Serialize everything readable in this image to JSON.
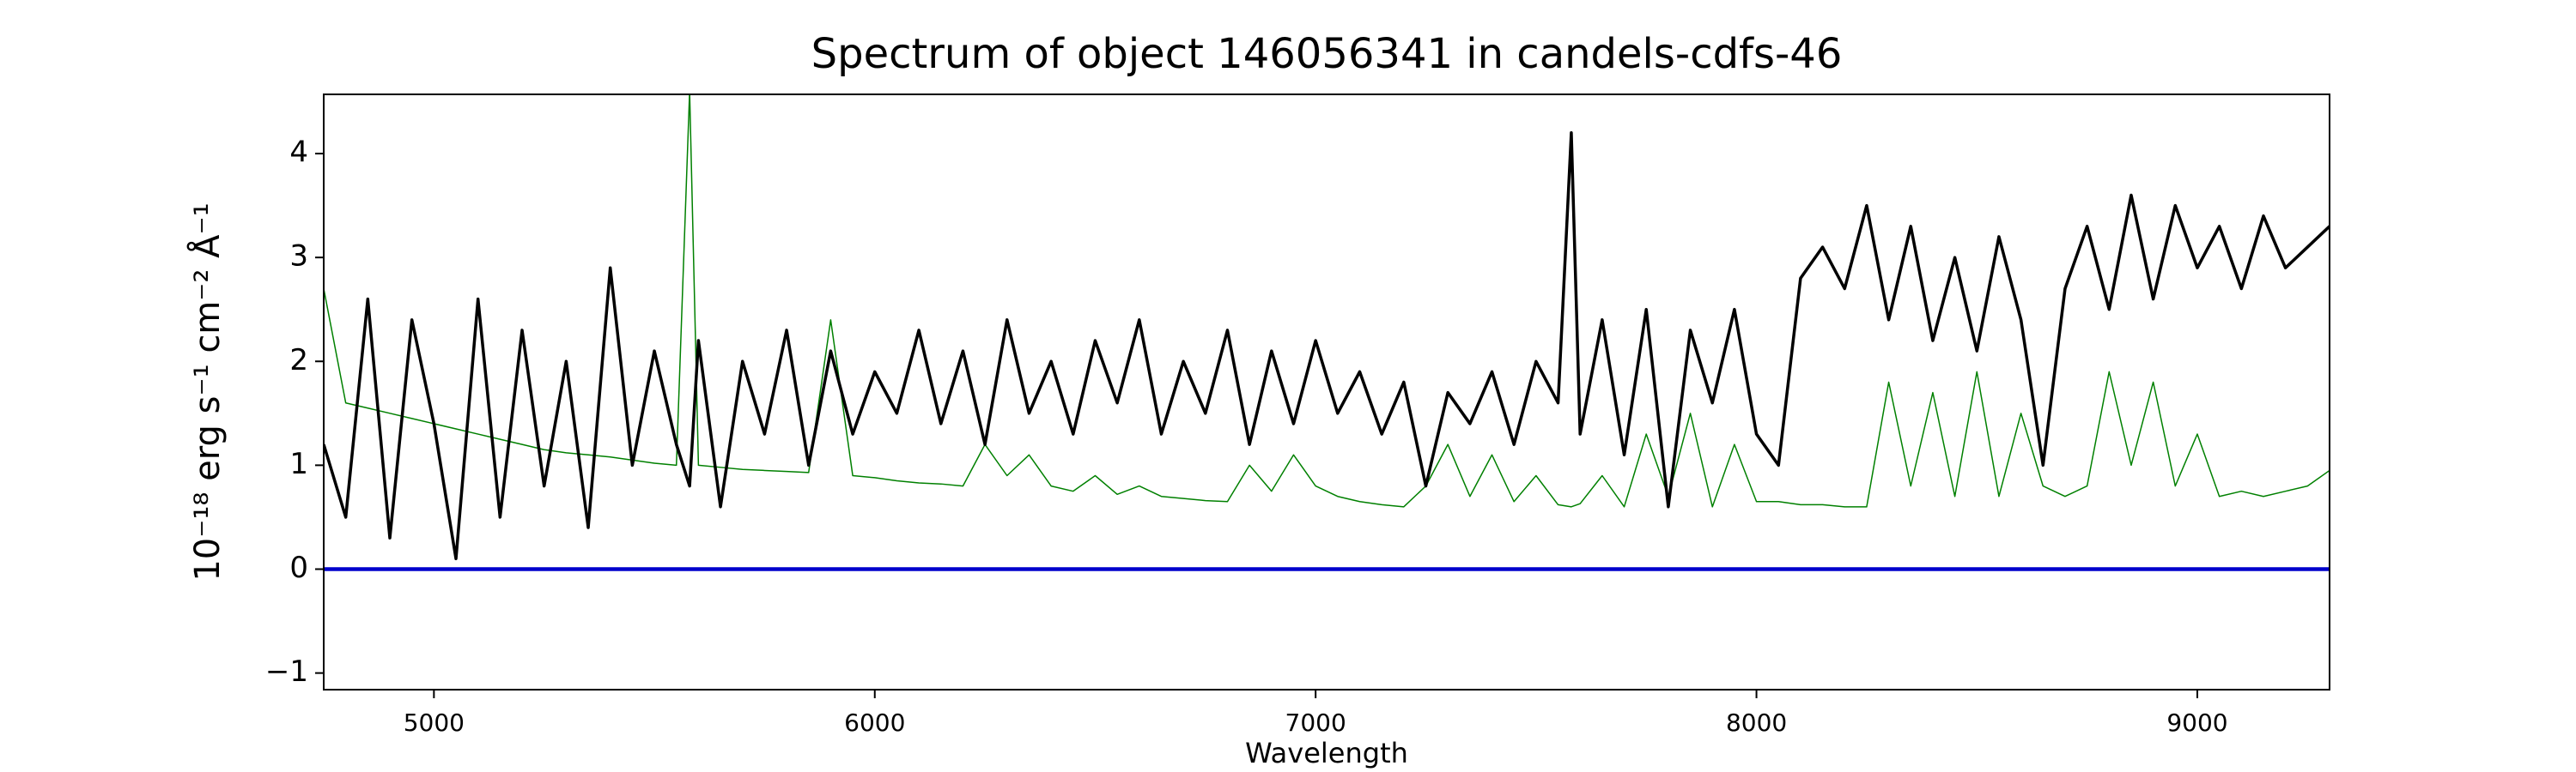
{
  "chart_data": {
    "type": "line",
    "title": "Spectrum of object 146056341 in candels-cdfs-46",
    "x_label": "Wavelength",
    "y_label": "10⁻¹⁸ erg s⁻¹ cm⁻² Å⁻¹",
    "xlim": [
      4750,
      9300
    ],
    "ylim": [
      -1.16,
      4.57
    ],
    "xticks": [
      5000,
      6000,
      7000,
      8000,
      9000
    ],
    "yticks": [
      {
        "value": -1,
        "label": "−1"
      },
      0,
      1,
      2,
      3,
      4
    ],
    "x": [
      4750,
      4800,
      4850,
      4900,
      4950,
      5000,
      5050,
      5100,
      5150,
      5200,
      5250,
      5300,
      5350,
      5400,
      5450,
      5500,
      5550,
      5580,
      5600,
      5650,
      5700,
      5750,
      5800,
      5850,
      5900,
      5950,
      6000,
      6050,
      6100,
      6150,
      6200,
      6250,
      6300,
      6350,
      6400,
      6450,
      6500,
      6550,
      6600,
      6650,
      6700,
      6750,
      6800,
      6850,
      6900,
      6950,
      7000,
      7050,
      7100,
      7150,
      7200,
      7250,
      7300,
      7350,
      7400,
      7450,
      7500,
      7550,
      7580,
      7600,
      7650,
      7700,
      7750,
      7800,
      7850,
      7900,
      7950,
      8000,
      8050,
      8100,
      8150,
      8200,
      8250,
      8300,
      8350,
      8400,
      8450,
      8500,
      8550,
      8600,
      8650,
      8700,
      8750,
      8800,
      8850,
      8900,
      8950,
      9000,
      9050,
      9100,
      9150,
      9200,
      9250,
      9300
    ],
    "series": [
      {
        "color": "#008000",
        "width": 1.5,
        "values": [
          2.7,
          1.6,
          1.55,
          1.5,
          1.45,
          1.4,
          1.35,
          1.3,
          1.25,
          1.2,
          1.15,
          1.12,
          1.1,
          1.08,
          1.05,
          1.02,
          1.0,
          4.6,
          1.0,
          0.98,
          0.96,
          0.95,
          0.94,
          0.93,
          2.4,
          0.9,
          0.88,
          0.85,
          0.83,
          0.82,
          0.8,
          1.2,
          0.9,
          1.1,
          0.8,
          0.75,
          0.9,
          0.72,
          0.8,
          0.7,
          0.68,
          0.66,
          0.65,
          1.0,
          0.75,
          1.1,
          0.8,
          0.7,
          0.65,
          0.62,
          0.6,
          0.8,
          1.2,
          0.7,
          1.1,
          0.65,
          0.9,
          0.62,
          0.6,
          0.63,
          0.9,
          0.6,
          1.3,
          0.7,
          1.5,
          0.6,
          1.2,
          0.65,
          0.65,
          0.62,
          0.62,
          0.6,
          0.6,
          1.8,
          0.8,
          1.7,
          0.7,
          1.9,
          0.7,
          1.5,
          0.8,
          0.7,
          0.8,
          1.9,
          1.0,
          1.8,
          0.8,
          1.3,
          0.7,
          0.75,
          0.7,
          0.75,
          0.8,
          0.95
        ]
      },
      {
        "color": "#000000",
        "width": 3.5,
        "values": [
          1.2,
          0.5,
          2.6,
          0.3,
          2.4,
          1.4,
          0.1,
          2.6,
          0.5,
          2.3,
          0.8,
          2.0,
          0.4,
          2.9,
          1.0,
          2.1,
          1.2,
          0.8,
          2.2,
          0.6,
          2.0,
          1.3,
          2.3,
          1.0,
          2.1,
          1.3,
          1.9,
          1.5,
          2.3,
          1.4,
          2.1,
          1.2,
          2.4,
          1.5,
          2.0,
          1.3,
          2.2,
          1.6,
          2.4,
          1.3,
          2.0,
          1.5,
          2.3,
          1.2,
          2.1,
          1.4,
          2.2,
          1.5,
          1.9,
          1.3,
          1.8,
          0.8,
          1.7,
          1.4,
          1.9,
          1.2,
          2.0,
          1.6,
          4.2,
          1.3,
          2.4,
          1.1,
          2.5,
          0.6,
          2.3,
          1.6,
          2.5,
          1.3,
          1.0,
          2.8,
          3.1,
          2.7,
          3.5,
          2.4,
          3.3,
          2.2,
          3.0,
          2.1,
          3.2,
          2.4,
          1.0,
          2.7,
          3.3,
          2.5,
          3.6,
          2.6,
          3.5,
          2.9,
          3.3,
          2.7,
          3.4,
          2.9,
          3.1,
          3.3
        ]
      },
      {
        "color": "#0000cc",
        "width": 4.5,
        "x": [
          4750,
          9300
        ],
        "values": [
          0,
          0
        ]
      }
    ]
  }
}
